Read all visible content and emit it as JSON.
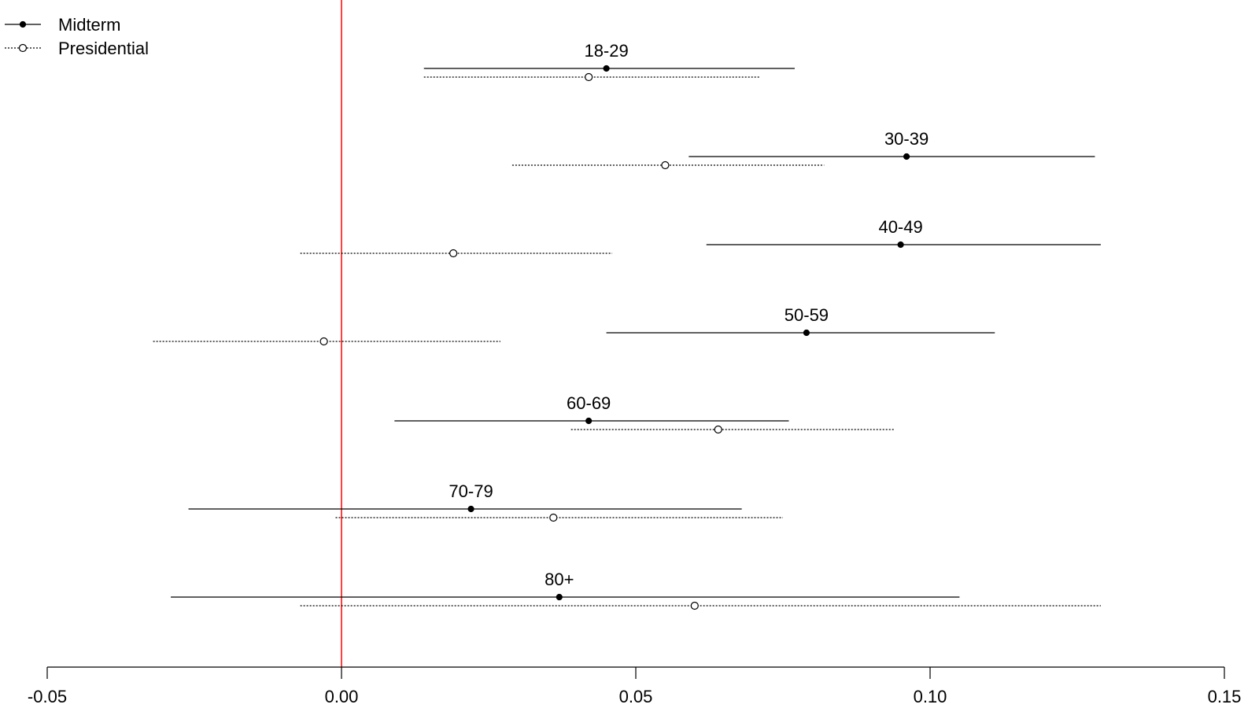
{
  "chart_data": {
    "type": "scatter",
    "title": "",
    "xlabel": "",
    "ylabel": "",
    "xlim": [
      -0.05,
      0.15
    ],
    "xticks": [
      -0.05,
      0.0,
      0.05,
      0.1,
      0.15
    ],
    "tick_labels": [
      "-0.05",
      "0.00",
      "0.05",
      "0.10",
      "0.15"
    ],
    "reference_line": {
      "x": 0.0,
      "color": "#ff0000"
    },
    "legend": {
      "placement": "top-left",
      "entries": [
        {
          "label": "Midterm",
          "line": "solid",
          "marker": "filled-circle"
        },
        {
          "label": "Presidential",
          "line": "dotted",
          "marker": "open-circle"
        }
      ]
    },
    "groups": [
      "18-29",
      "30-39",
      "40-49",
      "50-59",
      "60-69",
      "70-79",
      "80+"
    ],
    "series": [
      {
        "name": "Midterm",
        "style": "solid",
        "points": [
          {
            "group": "18-29",
            "estimate": 0.045,
            "low": 0.014,
            "high": 0.077
          },
          {
            "group": "30-39",
            "estimate": 0.096,
            "low": 0.059,
            "high": 0.128
          },
          {
            "group": "40-49",
            "estimate": 0.095,
            "low": 0.062,
            "high": 0.129
          },
          {
            "group": "50-59",
            "estimate": 0.079,
            "low": 0.045,
            "high": 0.111
          },
          {
            "group": "60-69",
            "estimate": 0.042,
            "low": 0.009,
            "high": 0.076
          },
          {
            "group": "70-79",
            "estimate": 0.022,
            "low": -0.026,
            "high": 0.068
          },
          {
            "group": "80+",
            "estimate": 0.037,
            "low": -0.029,
            "high": 0.105
          }
        ]
      },
      {
        "name": "Presidential",
        "style": "dotted",
        "points": [
          {
            "group": "18-29",
            "estimate": 0.042,
            "low": 0.014,
            "high": 0.071
          },
          {
            "group": "30-39",
            "estimate": 0.055,
            "low": 0.029,
            "high": 0.082
          },
          {
            "group": "40-49",
            "estimate": 0.019,
            "low": -0.007,
            "high": 0.046
          },
          {
            "group": "50-59",
            "estimate": -0.003,
            "low": -0.032,
            "high": 0.027
          },
          {
            "group": "60-69",
            "estimate": 0.064,
            "low": 0.039,
            "high": 0.094
          },
          {
            "group": "70-79",
            "estimate": 0.036,
            "low": -0.001,
            "high": 0.075
          },
          {
            "group": "80+",
            "estimate": 0.06,
            "low": -0.007,
            "high": 0.129
          }
        ]
      }
    ]
  }
}
